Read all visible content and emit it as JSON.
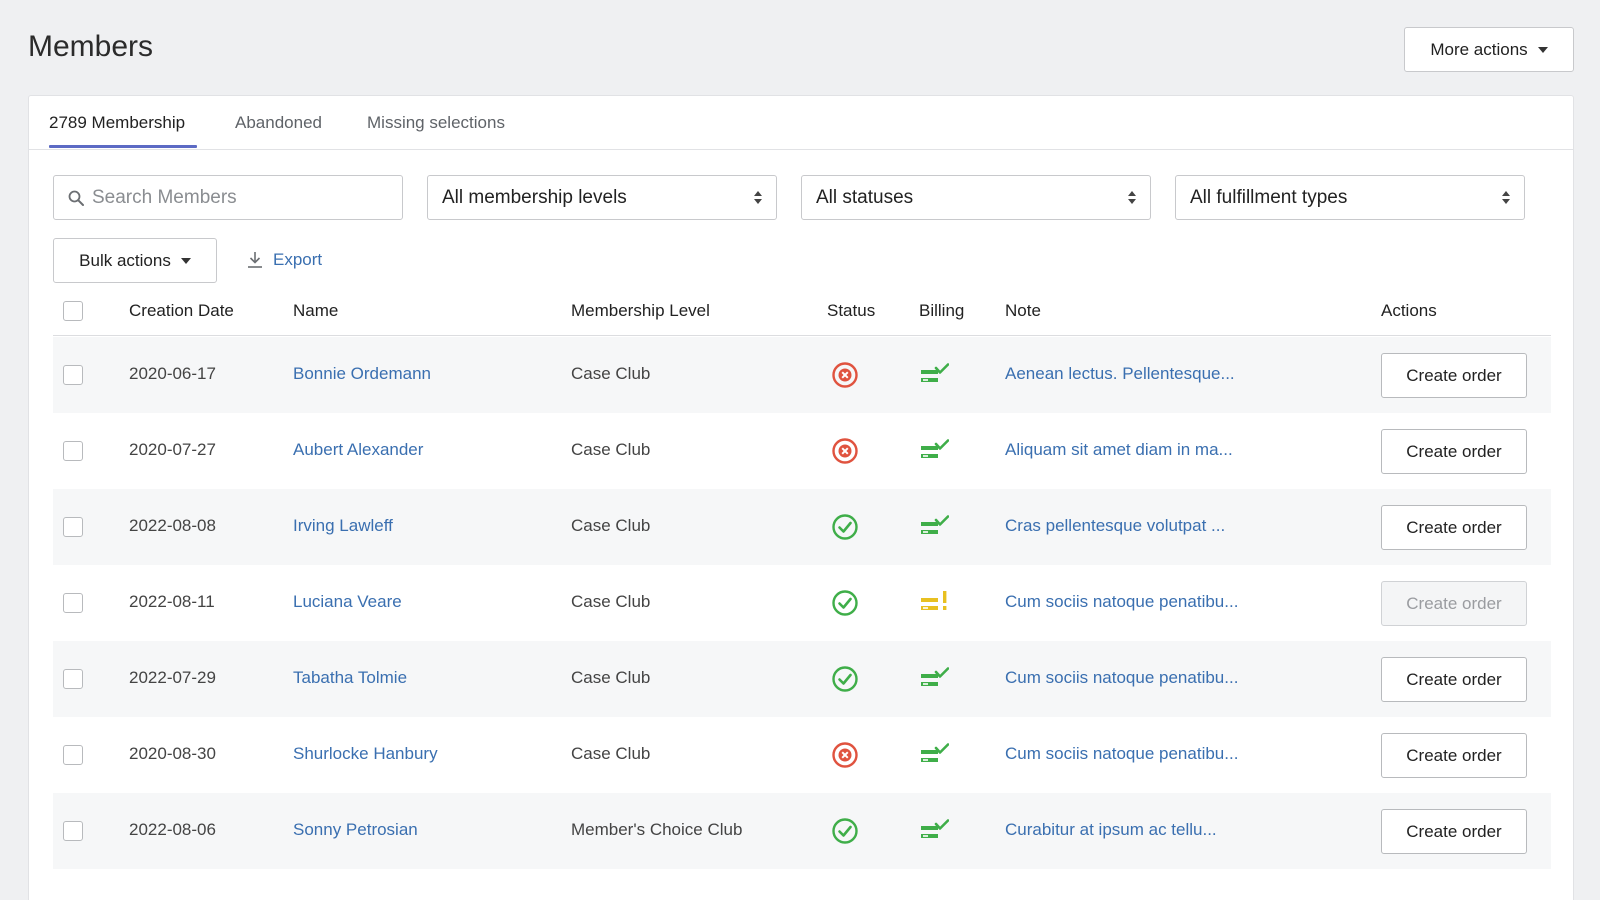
{
  "page": {
    "title": "Members"
  },
  "header": {
    "more_actions_label": "More actions"
  },
  "tabs": [
    {
      "label": "2789 Membership",
      "active": true
    },
    {
      "label": "Abandoned",
      "active": false
    },
    {
      "label": "Missing selections",
      "active": false
    }
  ],
  "filters": {
    "search_placeholder": "Search Members",
    "membership_level": "All membership levels",
    "status": "All statuses",
    "fulfillment": "All fulfillment types"
  },
  "toolbar": {
    "bulk_label": "Bulk actions",
    "export_label": "Export"
  },
  "table": {
    "columns": {
      "date": "Creation Date",
      "name": "Name",
      "level": "Membership Level",
      "status": "Status",
      "billing": "Billing",
      "note": "Note",
      "actions": "Actions"
    },
    "rows": [
      {
        "date": "2020-06-17",
        "name": "Bonnie Ordemann",
        "level": "Case Club",
        "status": "error",
        "billing": "ok",
        "note": "Aenean lectus. Pellentesque...",
        "action": "Create order",
        "action_disabled": false
      },
      {
        "date": "2020-07-27",
        "name": "Aubert Alexander",
        "level": "Case Club",
        "status": "error",
        "billing": "ok",
        "note": "Aliquam sit amet diam in ma...",
        "action": "Create order",
        "action_disabled": false
      },
      {
        "date": "2022-08-08",
        "name": "Irving Lawleff",
        "level": "Case Club",
        "status": "success",
        "billing": "ok",
        "note": "Cras pellentesque volutpat ...",
        "action": "Create order",
        "action_disabled": false
      },
      {
        "date": "2022-08-11",
        "name": "Luciana Veare",
        "level": "Case Club",
        "status": "success",
        "billing": "warning",
        "note": "Cum sociis natoque penatibu...",
        "action": "Create order",
        "action_disabled": true
      },
      {
        "date": "2022-07-29",
        "name": "Tabatha Tolmie",
        "level": "Case Club",
        "status": "success",
        "billing": "ok",
        "note": "Cum sociis natoque penatibu...",
        "action": "Create order",
        "action_disabled": false
      },
      {
        "date": "2020-08-30",
        "name": "Shurlocke Hanbury",
        "level": "Case Club",
        "status": "error",
        "billing": "ok",
        "note": "Cum sociis natoque penatibu...",
        "action": "Create order",
        "action_disabled": false
      },
      {
        "date": "2022-08-06",
        "name": "Sonny Petrosian",
        "level": "Member's Choice Club",
        "status": "success",
        "billing": "ok",
        "note": "Curabitur at ipsum ac tellu...",
        "action": "Create order",
        "action_disabled": false
      }
    ]
  },
  "colors": {
    "accent": "#5c6ac4",
    "link": "#3a6fb0",
    "success": "#3fae49",
    "error": "#e0533f",
    "billing_ok": "#3fae49",
    "billing_warning": "#e8c020"
  }
}
